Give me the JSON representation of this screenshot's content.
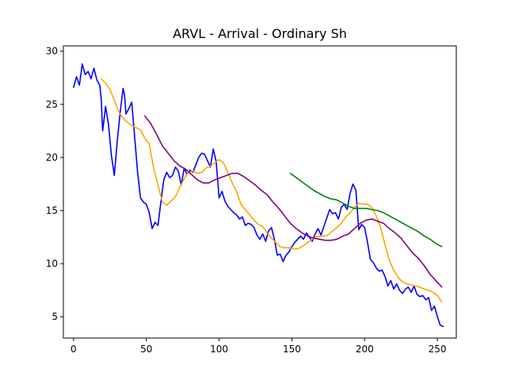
{
  "chart_data": {
    "type": "line",
    "title": "ARVL - Arrival - Ordinary Sh",
    "xlabel": "",
    "ylabel": "",
    "xlim": [
      -7,
      263
    ],
    "ylim": [
      3,
      30.5
    ],
    "xticks": [
      0,
      50,
      100,
      150,
      200,
      250
    ],
    "yticks": [
      5,
      10,
      15,
      20,
      25,
      30
    ],
    "grid": false,
    "series": [
      {
        "color": "#0000ff",
        "x": [
          0,
          2,
          4,
          6,
          8,
          10,
          12,
          14,
          16,
          18,
          19,
          20,
          22,
          24,
          26,
          28,
          30,
          32,
          34,
          35,
          36,
          38,
          40,
          42,
          44,
          46,
          48,
          50,
          52,
          54,
          56,
          58,
          60,
          62,
          64,
          66,
          68,
          70,
          72,
          74,
          76,
          78,
          80,
          82,
          84,
          86,
          88,
          90,
          92,
          94,
          96,
          98,
          100,
          102,
          104,
          106,
          108,
          110,
          112,
          114,
          116,
          118,
          120,
          122,
          124,
          126,
          128,
          130,
          132,
          134,
          136,
          138,
          140,
          142,
          144,
          146,
          148,
          150,
          152,
          154,
          156,
          158,
          160,
          162,
          164,
          166,
          168,
          170,
          172,
          174,
          176,
          178,
          180,
          182,
          184,
          186,
          188,
          190,
          192,
          194,
          196,
          198,
          200,
          202,
          204,
          206,
          208,
          210,
          212,
          214,
          216,
          218,
          220,
          222,
          224,
          226,
          228,
          230,
          232,
          234,
          236,
          238,
          240,
          242,
          244,
          246,
          248,
          250,
          252,
          254
        ],
        "values": [
          26.6,
          27.6,
          26.8,
          28.8,
          27.8,
          28.1,
          27.4,
          28.4,
          27.3,
          26.8,
          25.5,
          22.5,
          24.8,
          23.1,
          20.2,
          18.3,
          21.5,
          24.2,
          26.5,
          25.9,
          24.1,
          24.6,
          25.2,
          21.9,
          18.6,
          16.2,
          15.8,
          15.6,
          14.8,
          13.3,
          13.9,
          13.6,
          15.8,
          17.9,
          18.6,
          18.1,
          18.3,
          19.1,
          18.7,
          17.4,
          19.0,
          18.4,
          18.8,
          18.6,
          19.3,
          20.0,
          20.4,
          20.3,
          19.7,
          19.1,
          20.8,
          19.6,
          16.2,
          16.8,
          15.9,
          15.4,
          15.1,
          14.8,
          14.6,
          14.2,
          14.4,
          13.6,
          13.8,
          13.7,
          13.4,
          12.7,
          12.3,
          12.8,
          12.1,
          13.1,
          13.4,
          12.3,
          10.8,
          10.9,
          10.2,
          10.8,
          11.1,
          11.6,
          12.0,
          12.3,
          12.6,
          12.3,
          12.9,
          12.5,
          12.1,
          12.8,
          13.3,
          12.7,
          13.5,
          14.3,
          15.1,
          14.7,
          14.8,
          14.2,
          15.3,
          15.6,
          15.1,
          16.6,
          17.5,
          16.9,
          13.2,
          13.7,
          13.4,
          12.0,
          10.4,
          10.1,
          9.6,
          9.3,
          9.4,
          8.8,
          7.9,
          8.4,
          7.6,
          8.1,
          7.5,
          7.2,
          7.6,
          7.8,
          7.3,
          7.9,
          7.1,
          6.9,
          7.0,
          6.6,
          6.8,
          5.6,
          6.0,
          5.0,
          4.2,
          4.1
        ]
      },
      {
        "color": "#ffa500",
        "x": [
          19,
          22,
          25,
          28,
          31,
          34,
          37,
          40,
          43,
          46,
          49,
          52,
          55,
          58,
          61,
          64,
          67,
          70,
          73,
          76,
          79,
          82,
          85,
          88,
          91,
          94,
          97,
          100,
          103,
          106,
          109,
          112,
          115,
          118,
          121,
          124,
          127,
          130,
          133,
          136,
          139,
          142,
          145,
          148,
          151,
          154,
          157,
          160,
          163,
          166,
          169,
          172,
          175,
          178,
          181,
          184,
          187,
          190,
          193,
          196,
          199,
          202,
          205,
          208,
          211,
          214,
          217,
          220,
          223,
          226,
          229,
          232,
          235,
          238,
          241,
          244,
          247,
          250,
          253
        ],
        "values": [
          27.4,
          27.0,
          26.4,
          25.4,
          24.3,
          23.7,
          23.3,
          23.0,
          22.8,
          22.6,
          21.8,
          21.3,
          19.0,
          17.4,
          15.8,
          15.5,
          15.9,
          16.3,
          17.2,
          18.0,
          18.6,
          18.7,
          18.5,
          18.6,
          19.0,
          19.2,
          19.5,
          19.8,
          19.5,
          18.6,
          17.6,
          16.8,
          15.6,
          15.1,
          14.6,
          14.1,
          13.7,
          13.5,
          12.9,
          12.4,
          12.0,
          11.6,
          11.5,
          11.5,
          11.4,
          11.4,
          11.6,
          11.9,
          12.2,
          12.5,
          12.6,
          12.6,
          12.7,
          13.1,
          13.4,
          13.8,
          14.4,
          14.8,
          15.3,
          15.7,
          15.6,
          15.6,
          15.3,
          14.5,
          13.4,
          11.8,
          10.3,
          9.4,
          8.7,
          8.3,
          8.1,
          8.0,
          7.9,
          7.8,
          7.6,
          7.5,
          7.3,
          7.0,
          6.4
        ]
      },
      {
        "color": "#800080",
        "x": [
          49,
          53,
          57,
          61,
          65,
          69,
          73,
          77,
          81,
          85,
          89,
          93,
          97,
          101,
          105,
          109,
          113,
          117,
          121,
          125,
          129,
          133,
          137,
          141,
          145,
          149,
          153,
          157,
          161,
          165,
          169,
          173,
          177,
          181,
          185,
          189,
          193,
          197,
          201,
          205,
          209,
          213,
          217,
          221,
          225,
          229,
          233,
          237,
          241,
          245,
          249,
          253
        ],
        "values": [
          23.9,
          23.2,
          22.2,
          21.1,
          20.4,
          19.7,
          19.2,
          18.9,
          18.4,
          17.9,
          17.6,
          17.6,
          17.9,
          18.1,
          18.3,
          18.5,
          18.5,
          18.2,
          17.8,
          17.4,
          16.9,
          16.5,
          15.8,
          15.2,
          14.5,
          13.8,
          13.3,
          12.9,
          12.6,
          12.4,
          12.3,
          12.2,
          12.2,
          12.3,
          12.6,
          12.8,
          13.3,
          13.8,
          14.1,
          14.2,
          14.0,
          13.8,
          13.3,
          12.9,
          12.4,
          11.7,
          11.0,
          10.5,
          9.8,
          9.0,
          8.4,
          7.8
        ]
      },
      {
        "color": "#008000",
        "x": [
          149,
          153,
          157,
          161,
          165,
          169,
          173,
          177,
          181,
          185,
          189,
          193,
          197,
          201,
          205,
          209,
          213,
          217,
          221,
          225,
          229,
          233,
          237,
          241,
          245,
          249,
          253
        ],
        "values": [
          18.5,
          18.1,
          17.7,
          17.3,
          16.9,
          16.6,
          16.3,
          16.1,
          16.0,
          15.7,
          15.4,
          15.2,
          15.2,
          15.2,
          15.1,
          15.0,
          14.8,
          14.5,
          14.2,
          13.9,
          13.6,
          13.3,
          13.0,
          12.6,
          12.3,
          11.9,
          11.6
        ]
      }
    ]
  }
}
